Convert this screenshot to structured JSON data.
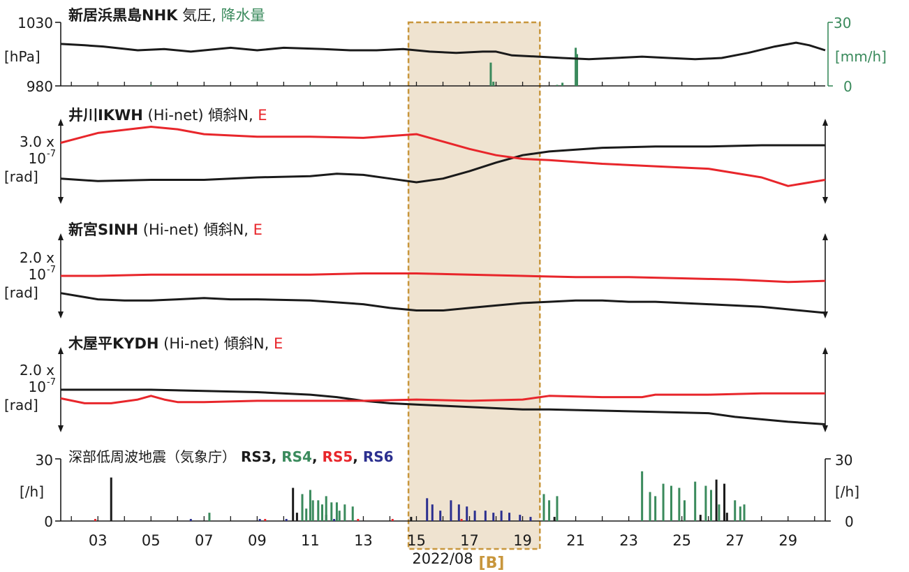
{
  "colors": {
    "black": "#1a1a1a",
    "red": "#e8262b",
    "green": "#3a8a5c",
    "blue": "#2b2f8f",
    "highlight_fill": "#efe3d0",
    "highlight_border": "#c8963c"
  },
  "chart_data": [
    {
      "type": "line",
      "panel": "pressure-rain",
      "title_parts": [
        {
          "text": "新居浜黒島NHK",
          "bold": true,
          "color": "black"
        },
        {
          "text": " 気圧, ",
          "bold": false,
          "color": "black"
        },
        {
          "text": "降水量",
          "bold": false,
          "color": "green"
        }
      ],
      "y_left": {
        "tick_labels": [
          "1030",
          "980"
        ],
        "unit": "[hPa]",
        "range": [
          980,
          1030
        ]
      },
      "y_right": {
        "tick_labels": [
          "30",
          "0"
        ],
        "unit": "[mm/h]",
        "range": [
          0,
          30
        ]
      },
      "series": [
        {
          "key": "pressure",
          "color": "black",
          "x": [
            1.6,
            2.5,
            3.2,
            4.5,
            5.5,
            6.5,
            8.0,
            9.0,
            10.0,
            11.5,
            12.5,
            13.5,
            14.5,
            15.5,
            16.5,
            17.5,
            18.0,
            18.6,
            19.6,
            20.5,
            21.5,
            22.5,
            23.5,
            24.5,
            25.5,
            26.5,
            27.5,
            28.5,
            29.3,
            29.8,
            30.4
          ],
          "y": [
            1013,
            1012,
            1011,
            1008,
            1009,
            1007,
            1010,
            1008,
            1010,
            1009,
            1008,
            1008,
            1009,
            1007,
            1006,
            1007,
            1007,
            1004,
            1003,
            1002,
            1001,
            1002,
            1003,
            1002,
            1001,
            1002,
            1006,
            1011,
            1014,
            1012,
            1008
          ]
        }
      ],
      "bars": [
        {
          "key": "rain",
          "color": "green",
          "x": [
            5.0,
            11.0,
            17.8,
            17.9,
            20.3,
            20.5,
            21.0,
            21.05
          ],
          "y": [
            0.4,
            0.3,
            11,
            2,
            0.5,
            1.5,
            18,
            15
          ]
        }
      ]
    },
    {
      "type": "line",
      "panel": "tilt-ikwh",
      "title_parts": [
        {
          "text": "井川IKWH",
          "bold": true,
          "color": "black"
        },
        {
          "text": " (Hi-net) 傾斜N, ",
          "bold": false,
          "color": "black"
        },
        {
          "text": "E",
          "bold": false,
          "color": "red"
        }
      ],
      "scale_label": [
        "3.0 x",
        "10",
        "-7",
        "[rad]"
      ],
      "series": [
        {
          "key": "N",
          "color": "black",
          "x": [
            1.6,
            3.0,
            5.0,
            7.0,
            9.0,
            11.0,
            12.0,
            13.0,
            14.0,
            15.0,
            16.0,
            17.0,
            18.0,
            19.0,
            20.0,
            22.0,
            24.0,
            26.0,
            28.0,
            30.4
          ],
          "y": [
            1.6,
            1.4,
            1.5,
            1.5,
            1.7,
            1.8,
            2.0,
            1.9,
            1.6,
            1.3,
            1.6,
            2.2,
            2.9,
            3.5,
            3.8,
            4.1,
            4.2,
            4.2,
            4.3,
            4.3
          ]
        },
        {
          "key": "E",
          "color": "red",
          "x": [
            1.6,
            3.0,
            5.0,
            6.0,
            7.0,
            9.0,
            11.0,
            13.0,
            15.0,
            16.0,
            17.0,
            18.0,
            19.0,
            20.0,
            22.0,
            24.0,
            26.0,
            28.0,
            29.0,
            30.4
          ],
          "y": [
            4.5,
            5.3,
            5.8,
            5.6,
            5.2,
            5.0,
            5.0,
            4.9,
            5.2,
            4.6,
            4.0,
            3.5,
            3.2,
            3.1,
            2.8,
            2.6,
            2.4,
            1.7,
            1.0,
            1.5
          ]
        }
      ]
    },
    {
      "type": "line",
      "panel": "tilt-sinh",
      "title_parts": [
        {
          "text": "新宮SINH",
          "bold": true,
          "color": "black"
        },
        {
          "text": " (Hi-net) 傾斜N, ",
          "bold": false,
          "color": "black"
        },
        {
          "text": "E",
          "bold": false,
          "color": "red"
        }
      ],
      "scale_label": [
        "2.0 x",
        "10",
        "-7",
        "[rad]"
      ],
      "series": [
        {
          "key": "N",
          "color": "black",
          "x": [
            1.6,
            3.0,
            4.0,
            5.0,
            6.0,
            7.0,
            8.0,
            9.0,
            11.0,
            13.0,
            14.0,
            15.0,
            16.0,
            17.0,
            18.0,
            19.0,
            20.0,
            21.0,
            22.0,
            23.0,
            24.0,
            26.0,
            28.0,
            30.4
          ],
          "y": [
            1.6,
            1.1,
            1.0,
            1.0,
            1.1,
            1.2,
            1.1,
            1.1,
            1.0,
            0.7,
            0.4,
            0.2,
            0.2,
            0.4,
            0.6,
            0.8,
            0.9,
            1.0,
            1.0,
            0.9,
            0.9,
            0.7,
            0.5,
            0.0
          ]
        },
        {
          "key": "E",
          "color": "red",
          "x": [
            1.6,
            3.0,
            5.0,
            7.0,
            9.0,
            11.0,
            13.0,
            15.0,
            17.0,
            19.0,
            21.0,
            23.0,
            25.0,
            27.0,
            29.0,
            30.4
          ],
          "y": [
            3.0,
            3.0,
            3.1,
            3.1,
            3.1,
            3.1,
            3.2,
            3.2,
            3.1,
            3.0,
            2.9,
            2.9,
            2.8,
            2.7,
            2.5,
            2.6
          ]
        }
      ]
    },
    {
      "type": "line",
      "panel": "tilt-kydh",
      "title_parts": [
        {
          "text": "木屋平KYDH",
          "bold": true,
          "color": "black"
        },
        {
          "text": " (Hi-net) 傾斜N, ",
          "bold": false,
          "color": "black"
        },
        {
          "text": "E",
          "bold": false,
          "color": "red"
        }
      ],
      "scale_label": [
        "2.0 x",
        "10",
        "-7",
        "[rad]"
      ],
      "series": [
        {
          "key": "N",
          "color": "black",
          "x": [
            1.6,
            3.0,
            5.0,
            7.0,
            9.0,
            11.0,
            12.0,
            13.0,
            14.0,
            15.0,
            16.0,
            17.0,
            18.0,
            19.0,
            20.0,
            22.0,
            24.0,
            26.0,
            27.0,
            28.0,
            29.0,
            30.4
          ],
          "y": [
            3.0,
            3.0,
            3.0,
            2.9,
            2.8,
            2.6,
            2.4,
            2.1,
            1.9,
            1.8,
            1.7,
            1.6,
            1.5,
            1.4,
            1.4,
            1.3,
            1.2,
            1.1,
            0.8,
            0.6,
            0.4,
            0.2
          ]
        },
        {
          "key": "E",
          "color": "red",
          "x": [
            1.6,
            2.5,
            3.5,
            4.5,
            5.0,
            5.5,
            6.0,
            7.0,
            9.0,
            11.0,
            13.0,
            15.0,
            17.0,
            19.0,
            20.0,
            22.0,
            23.5,
            24.0,
            26.0,
            28.0,
            30.4
          ],
          "y": [
            2.3,
            1.9,
            1.9,
            2.2,
            2.5,
            2.2,
            2.0,
            2.0,
            2.1,
            2.1,
            2.1,
            2.2,
            2.1,
            2.2,
            2.5,
            2.4,
            2.4,
            2.6,
            2.6,
            2.7,
            2.7
          ]
        }
      ]
    },
    {
      "type": "bar",
      "panel": "lfe",
      "title_parts": [
        {
          "text": "深部低周波地震（気象庁）",
          "bold": false,
          "color": "black"
        },
        {
          "text": " RS3",
          "bold": true,
          "color": "black"
        },
        {
          "text": ", ",
          "bold": true,
          "color": "black"
        },
        {
          "text": "RS4",
          "bold": true,
          "color": "green"
        },
        {
          "text": ", ",
          "bold": true,
          "color": "black"
        },
        {
          "text": "RS5",
          "bold": true,
          "color": "red"
        },
        {
          "text": ", ",
          "bold": true,
          "color": "black"
        },
        {
          "text": "RS6",
          "bold": true,
          "color": "blue"
        }
      ],
      "y_left": {
        "tick_labels": [
          "30",
          "0"
        ],
        "unit": "[/h]",
        "range": [
          0,
          30
        ]
      },
      "y_right": {
        "tick_labels": [
          "30",
          "0"
        ],
        "unit": "[/h]",
        "range": [
          0,
          30
        ]
      },
      "x_tick_labels": [
        "03",
        "05",
        "07",
        "09",
        "11",
        "13",
        "15",
        "17",
        "19",
        "21",
        "23",
        "25",
        "27",
        "29"
      ],
      "x_label": "2022/08",
      "highlight_label": "[B]",
      "highlight_range": [
        14.7,
        19.65
      ],
      "series": [
        {
          "name": "RS3",
          "color": "black",
          "x": [
            3.5,
            10.35,
            10.5,
            11.6,
            14.8,
            20.2,
            25.7,
            26.3,
            26.6,
            26.7
          ],
          "y": [
            21,
            16,
            4,
            3,
            2,
            2,
            3,
            20,
            18,
            4
          ]
        },
        {
          "name": "RS4",
          "color": "green",
          "x": [
            7.2,
            10.7,
            10.85,
            11.0,
            11.1,
            11.3,
            11.45,
            11.6,
            11.8,
            12.0,
            12.1,
            12.3,
            12.6,
            19.8,
            20.0,
            20.3,
            23.5,
            23.8,
            24.0,
            24.3,
            24.6,
            24.9,
            25.1,
            25.5,
            25.9,
            26.1,
            26.4,
            27.0,
            27.2,
            27.35
          ],
          "y": [
            4,
            13,
            6,
            15,
            10,
            10,
            8,
            12,
            9,
            9,
            5,
            8,
            7,
            13,
            10,
            12,
            24,
            14,
            12,
            18,
            17,
            16,
            10,
            19,
            17,
            15,
            8,
            10,
            7,
            8
          ]
        },
        {
          "name": "RS5",
          "color": "red",
          "x": [
            2.9,
            9.3,
            12.8,
            14.1,
            16.7
          ],
          "y": [
            1,
            1,
            1,
            1,
            1
          ]
        },
        {
          "name": "RS6",
          "color": "blue",
          "x": [
            6.5,
            9.1,
            10.1,
            11.9,
            15.4,
            15.6,
            15.9,
            16.3,
            16.6,
            16.9,
            17.2,
            17.6,
            17.9,
            18.2,
            18.5,
            18.9,
            19.3
          ],
          "y": [
            1,
            1,
            1,
            1,
            11,
            8,
            5,
            10,
            8,
            7,
            5,
            5,
            4,
            5,
            4,
            3,
            2
          ]
        }
      ]
    }
  ]
}
